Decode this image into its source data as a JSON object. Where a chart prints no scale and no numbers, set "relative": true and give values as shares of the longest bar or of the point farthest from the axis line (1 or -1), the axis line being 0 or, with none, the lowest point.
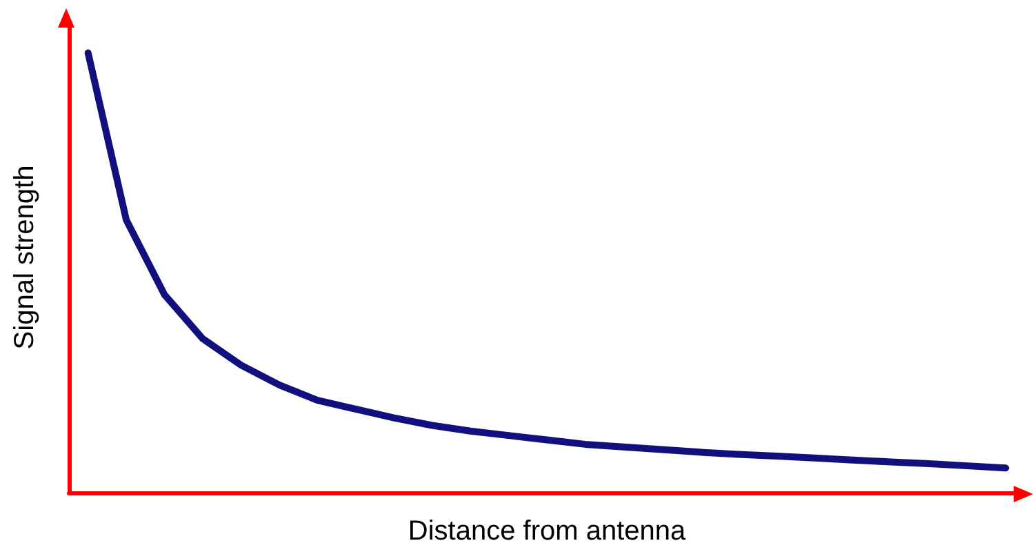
{
  "chart_data": {
    "type": "line",
    "relative": true,
    "xlabel": "Distance from antenna",
    "ylabel": "Signal strength",
    "categories": [
      null,
      null,
      null,
      null,
      null,
      null,
      null,
      null,
      null,
      null,
      null,
      null,
      null,
      null,
      null,
      null,
      null,
      null,
      null,
      null,
      null,
      null,
      null,
      null,
      null
    ],
    "series": [
      {
        "color": "#10107f",
        "values": [
          1.0,
          0.62,
          0.45,
          0.35,
          0.29,
          0.245,
          0.21,
          0.19,
          0.17,
          0.153,
          0.14,
          0.13,
          0.12,
          0.11,
          0.104,
          0.098,
          0.092,
          0.087,
          0.083,
          0.079,
          0.074,
          0.07,
          0.066,
          0.061,
          0.056
        ]
      }
    ],
    "grid": false,
    "marker": "none",
    "line_style": "solid"
  }
}
